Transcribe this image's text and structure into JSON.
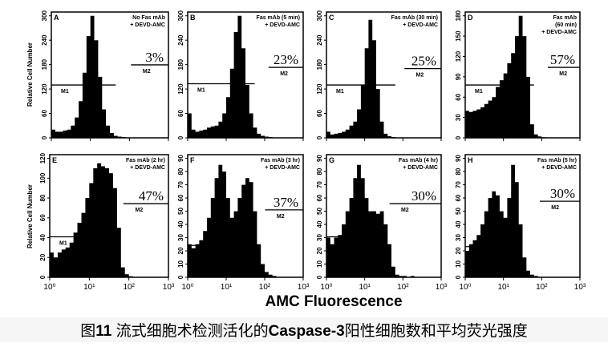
{
  "figure": {
    "x_axis_title": "AMC Fluorescence",
    "y_axis_title": "Relative Cell Number",
    "caption": {
      "prefix": "图",
      "number": "11",
      "text1": " 流式细胞术检测活化的",
      "bold_term": "Caspase-3",
      "text2": "阳性细胞数和平均荧光强度"
    }
  },
  "chart_data": [
    {
      "type": "area",
      "panel": "A",
      "legend": [
        "No Fas mAb",
        "+ DEVD-AMC"
      ],
      "percent": "3%",
      "markers": [
        "M1",
        "M2"
      ],
      "xscale": "log",
      "xlim": [
        1,
        1000
      ],
      "ylim": [
        0,
        300
      ],
      "yticks": [
        0,
        60,
        120,
        180,
        240,
        300
      ],
      "bins_log10_start": 0,
      "bin_width_log10": 0.1,
      "values": [
        20,
        15,
        15,
        18,
        20,
        30,
        50,
        90,
        160,
        250,
        300,
        240,
        150,
        70,
        30,
        12,
        5,
        3,
        2,
        1,
        1,
        0,
        0,
        0,
        0,
        0,
        0,
        0,
        0,
        0
      ]
    },
    {
      "type": "area",
      "panel": "B",
      "legend": [
        "Fas mAb (5 min)",
        "+ DEVD-AMC"
      ],
      "percent": "23%",
      "markers": [
        "M1",
        "M2"
      ],
      "xscale": "log",
      "xlim": [
        1,
        1000
      ],
      "ylim": [
        0,
        300
      ],
      "yticks": [
        0,
        60,
        120,
        180,
        240,
        300
      ],
      "bins_log10_start": 0,
      "bin_width_log10": 0.1,
      "values": [
        60,
        20,
        15,
        18,
        20,
        25,
        28,
        30,
        40,
        60,
        100,
        170,
        260,
        300,
        220,
        130,
        60,
        25,
        10,
        5,
        3,
        2,
        1,
        0,
        0,
        0,
        0,
        0,
        0,
        0
      ]
    },
    {
      "type": "area",
      "panel": "C",
      "legend": [
        "Fas mAb (30 min)",
        "+ DEVD-AMC"
      ],
      "percent": "25%",
      "markers": [
        "M1",
        "M2"
      ],
      "xscale": "log",
      "xlim": [
        1,
        1000
      ],
      "ylim": [
        0,
        300
      ],
      "yticks": [
        0,
        60,
        120,
        180,
        240,
        300
      ],
      "bins_log10_start": 0,
      "bin_width_log10": 0.1,
      "values": [
        15,
        8,
        10,
        12,
        15,
        20,
        30,
        40,
        70,
        130,
        220,
        290,
        240,
        120,
        40,
        10,
        4,
        2,
        1,
        1,
        0,
        0,
        0,
        0,
        0,
        0,
        0,
        0,
        0,
        0
      ]
    },
    {
      "type": "area",
      "panel": "D",
      "legend": [
        "Fas mAb",
        "(60 min)",
        "+ DEVD-AMC"
      ],
      "percent": "57%",
      "markers": [
        "M1",
        "M2"
      ],
      "xscale": "log",
      "xlim": [
        1,
        1000
      ],
      "ylim": [
        0,
        180
      ],
      "yticks": [
        0,
        30,
        60,
        90,
        120,
        150,
        180
      ],
      "bins_log10_start": 0,
      "bin_width_log10": 0.1,
      "values": [
        40,
        38,
        40,
        42,
        45,
        50,
        55,
        60,
        75,
        85,
        95,
        110,
        125,
        150,
        180,
        150,
        90,
        20,
        5,
        2,
        1,
        0,
        0,
        0,
        0,
        0,
        0,
        0,
        0,
        0
      ]
    },
    {
      "type": "area",
      "panel": "E",
      "legend": [
        "Fas mAb (2 hr)",
        "+ DEVD-AMC"
      ],
      "percent": "47%",
      "markers": [
        "M1",
        "M2"
      ],
      "xscale": "log",
      "xlim": [
        1,
        1000
      ],
      "ylim": [
        0,
        120
      ],
      "yticks": [
        0,
        20,
        40,
        60,
        80,
        100,
        120
      ],
      "bins_log10_start": 0,
      "bin_width_log10": 0.1,
      "values": [
        25,
        20,
        25,
        28,
        30,
        35,
        45,
        55,
        65,
        80,
        95,
        110,
        115,
        112,
        110,
        105,
        90,
        50,
        10,
        3,
        1,
        0,
        0,
        0,
        0,
        0,
        0,
        0,
        0,
        0
      ]
    },
    {
      "type": "area",
      "panel": "F",
      "legend": [
        "Fas mAb (3 hr)",
        "+ DEVD-AMC"
      ],
      "percent": "37%",
      "markers": [
        "M1",
        "M2"
      ],
      "xscale": "log",
      "xlim": [
        1,
        1000
      ],
      "ylim": [
        0,
        90
      ],
      "yticks": [
        0,
        10,
        20,
        30,
        40,
        50,
        60,
        70,
        80,
        90
      ],
      "bins_log10_start": 0,
      "bin_width_log10": 0.1,
      "values": [
        25,
        22,
        25,
        28,
        35,
        45,
        60,
        75,
        85,
        80,
        60,
        45,
        50,
        60,
        70,
        75,
        72,
        50,
        25,
        10,
        4,
        2,
        1,
        0,
        0,
        0,
        0,
        0,
        0,
        0
      ]
    },
    {
      "type": "area",
      "panel": "G",
      "legend": [
        "Fas mAb (4 hr)",
        "+ DEVD-AMC"
      ],
      "percent": "30%",
      "markers": [
        "M1",
        "M2"
      ],
      "xscale": "log",
      "xlim": [
        1,
        1000
      ],
      "ylim": [
        0,
        90
      ],
      "yticks": [
        0,
        10,
        20,
        30,
        40,
        50,
        60,
        70,
        80,
        90
      ],
      "bins_log10_start": 0,
      "bin_width_log10": 0.1,
      "values": [
        30,
        25,
        30,
        32,
        40,
        50,
        60,
        75,
        85,
        75,
        60,
        50,
        50,
        48,
        50,
        40,
        25,
        8,
        2,
        1,
        1,
        0,
        1,
        0,
        0,
        0,
        0,
        0,
        0,
        0
      ]
    },
    {
      "type": "area",
      "panel": "H",
      "legend": [
        "Fas mAb (5 hr)",
        "+ DEVD-AMC"
      ],
      "percent": "30%",
      "markers": [
        "M1",
        "M2"
      ],
      "xscale": "log",
      "xlim": [
        1,
        1000
      ],
      "ylim": [
        0,
        90
      ],
      "yticks": [
        0,
        10,
        20,
        30,
        40,
        50,
        60,
        70,
        80,
        90
      ],
      "bins_log10_start": 0,
      "bin_width_log10": 0.1,
      "values": [
        20,
        25,
        28,
        32,
        40,
        50,
        60,
        65,
        62,
        50,
        45,
        60,
        85,
        72,
        40,
        15,
        5,
        2,
        1,
        0,
        0,
        0,
        0,
        0,
        0,
        0,
        0,
        0,
        0,
        0
      ]
    }
  ],
  "x_tick_labels": [
    "10⁰",
    "10¹",
    "10²",
    "10³"
  ]
}
